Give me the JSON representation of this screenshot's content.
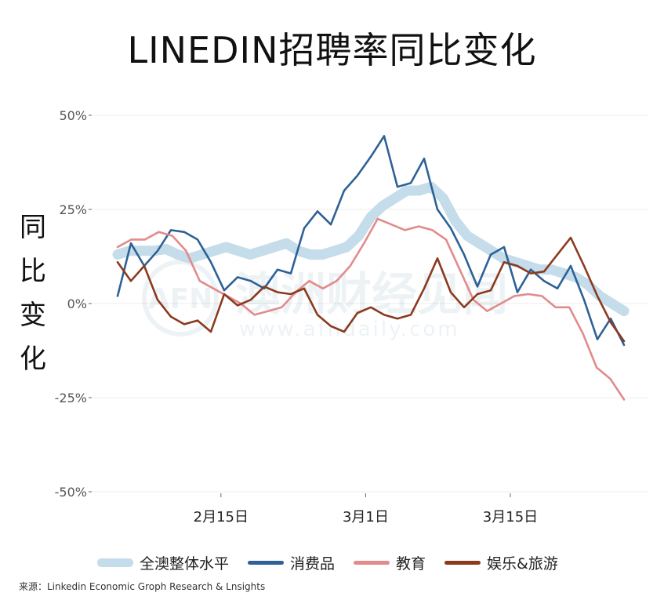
{
  "title": "LINEDIN招聘率同比变化",
  "ylabel_chars": [
    "同",
    "比",
    "变",
    "化"
  ],
  "source": "来源：Linkedin Economic Groph Research & Lnsights",
  "watermark": {
    "main": "澳洲财经见闻",
    "sub": "www.afndaily.com",
    "logo": "AFN"
  },
  "chart_data": {
    "type": "line",
    "title": "LINEDIN招聘率同比变化",
    "ylabel": "同比变化",
    "xlabel": "",
    "ylim": [
      -50,
      50
    ],
    "yticks": [
      50,
      25,
      0,
      -25,
      -50
    ],
    "ytick_labels": [
      "50%",
      "25%",
      "0%",
      "-25%",
      "-50%"
    ],
    "x_start": "2021-02-05",
    "x_end": "2021-03-26",
    "xticks": [
      {
        "x": "2021-02-15",
        "label": "2月15日"
      },
      {
        "x": "2021-03-01",
        "label": "3月1日"
      },
      {
        "x": "2021-03-15",
        "label": "3月15日"
      }
    ],
    "grid": true,
    "legend_position": "bottom",
    "series": [
      {
        "name": "全澳整体水平",
        "color": "#c5dcea",
        "values": [
          13,
          14,
          14,
          14,
          14.5,
          13,
          12,
          13,
          14,
          15,
          14,
          13,
          14,
          15,
          16,
          14,
          13,
          13,
          14,
          15,
          18,
          23,
          26,
          28,
          30,
          30,
          31,
          28,
          22,
          18,
          16,
          14,
          12,
          11,
          10,
          9,
          9,
          8,
          7,
          5,
          2,
          0,
          -2
        ]
      },
      {
        "name": "消费品",
        "color": "#2e6196",
        "values": [
          2,
          16,
          10,
          14,
          19.5,
          19,
          17,
          11,
          3.5,
          7,
          6,
          4,
          9,
          8,
          20,
          24.5,
          21,
          30,
          34,
          39,
          44.5,
          31,
          32,
          38.5,
          25,
          20,
          13,
          4.5,
          13,
          15,
          3,
          9,
          6,
          4,
          10,
          1,
          -9.5,
          -4,
          -11
        ]
      },
      {
        "name": "教育",
        "color": "#e28b8b",
        "values": [
          15,
          17,
          17,
          19,
          18,
          14,
          6,
          4,
          2,
          0,
          -3,
          -2,
          -1,
          3,
          6,
          4,
          6,
          10,
          16,
          22.5,
          21,
          19.5,
          20.5,
          19.5,
          17,
          9,
          1,
          -2,
          0,
          2,
          2.5,
          2,
          -1,
          -1,
          -8,
          -17,
          -20,
          -25.5
        ]
      },
      {
        "name": "娱乐&旅游",
        "color": "#8b3a1e",
        "values": [
          11,
          6,
          10,
          1,
          -3.5,
          -5.5,
          -4.5,
          -7.5,
          2.5,
          -0.5,
          1,
          4.5,
          3,
          2.5,
          4,
          -3,
          -6,
          -7.5,
          -2.5,
          -1,
          -3,
          -4,
          -3,
          4,
          12,
          3,
          -1,
          2.5,
          3.5,
          11,
          10,
          8,
          8.5,
          13,
          17.5,
          10,
          2,
          -5,
          -10
        ]
      }
    ]
  }
}
